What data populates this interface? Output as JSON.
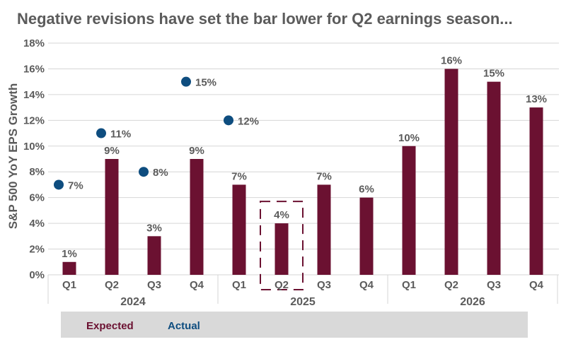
{
  "chart_data": {
    "type": "bar",
    "title": "Negative revisions have set the bar lower for Q2 earnings season...",
    "ylabel": "S&P 500 YoY EPS Growth",
    "ylim": [
      0,
      18
    ],
    "yticks": [
      "0%",
      "2%",
      "4%",
      "6%",
      "8%",
      "10%",
      "12%",
      "14%",
      "16%",
      "18%"
    ],
    "grid": true,
    "categories": [
      "Q1",
      "Q2",
      "Q3",
      "Q4",
      "Q1",
      "Q2",
      "Q3",
      "Q4",
      "Q1",
      "Q2",
      "Q3",
      "Q4"
    ],
    "years": [
      "2024",
      "2025",
      "2026"
    ],
    "series": [
      {
        "name": "Expected",
        "kind": "bar",
        "color": "#6b1131",
        "values": [
          1,
          9,
          3,
          9,
          7,
          4,
          7,
          6,
          10,
          16,
          15,
          13
        ],
        "labels": [
          "1%",
          "9%",
          "3%",
          "9%",
          "7%",
          "4%",
          "7%",
          "6%",
          "10%",
          "16%",
          "15%",
          "13%"
        ]
      },
      {
        "name": "Actual",
        "kind": "dot",
        "color": "#0e4d7f",
        "values": [
          7,
          11,
          8,
          15,
          12,
          null,
          null,
          null,
          null,
          null,
          null,
          null
        ],
        "labels": [
          "7%",
          "11%",
          "8%",
          "15%",
          "12%",
          "",
          "",
          "",
          "",
          "",
          "",
          ""
        ]
      }
    ],
    "highlight_index": 5,
    "legend": {
      "position": "bottom-left",
      "background": "#d9d9d9",
      "items": [
        {
          "label": "Expected",
          "color": "#6b1131"
        },
        {
          "label": "Actual",
          "color": "#0e4d7f"
        }
      ]
    }
  }
}
